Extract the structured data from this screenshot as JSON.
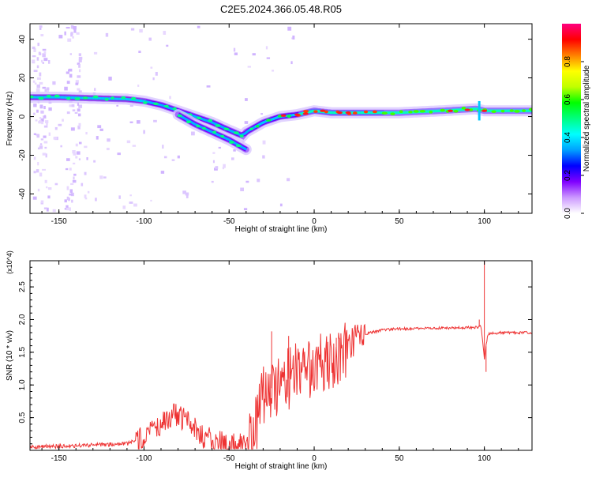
{
  "figure": {
    "title": "C2E5.2024.366.05.48.R05"
  },
  "chart_data": [
    {
      "type": "heatmap",
      "title": "C2E5.2024.366.05.48.R05",
      "xlabel": "Height of straight line (km)",
      "ylabel": "Frequency (Hz)",
      "xlim": [
        -167,
        128
      ],
      "ylim": [
        -50,
        48
      ],
      "x_ticks": [
        -150,
        -100,
        -50,
        0,
        50,
        100
      ],
      "y_ticks": [
        -40,
        -20,
        0,
        20,
        40
      ],
      "colorbar": {
        "label": "Normalized spectral amplitude",
        "range": [
          0,
          1
        ],
        "ticks": [
          0.0,
          0.2,
          0.4,
          0.6,
          0.8
        ],
        "colors": [
          "#ffffff",
          "#cc99ff",
          "#8000ff",
          "#0000ff",
          "#00a0ff",
          "#00ffff",
          "#00ff80",
          "#00ff00",
          "#c0ff00",
          "#ffff00",
          "#ff8000",
          "#ff0000",
          "#ff0080"
        ]
      },
      "ridges": [
        {
          "name": "",
          "points": [
            [
              -167,
              10
            ],
            [
              -150,
              10
            ],
            [
              -130,
              9.5
            ],
            [
              -110,
              9
            ],
            [
              -100,
              8
            ],
            [
              -90,
              6
            ],
            [
              -80,
              3
            ],
            [
              -70,
              0
            ],
            [
              -60,
              -3
            ],
            [
              -50,
              -7
            ],
            [
              -42,
              -10
            ],
            [
              -40,
              -8
            ],
            [
              -30,
              -3
            ],
            [
              -20,
              0
            ],
            [
              -10,
              1
            ],
            [
              0,
              3
            ],
            [
              10,
              2
            ],
            [
              25,
              2
            ],
            [
              50,
              2
            ],
            [
              75,
              3
            ],
            [
              95,
              4
            ],
            [
              100,
              3
            ],
            [
              128,
              3
            ]
          ]
        },
        {
          "name": "",
          "points": [
            [
              -80,
              1
            ],
            [
              -70,
              -4
            ],
            [
              -60,
              -8
            ],
            [
              -50,
              -12
            ],
            [
              -40,
              -17
            ]
          ]
        }
      ]
    },
    {
      "type": "line",
      "xlabel": "Height of straight line (km)",
      "ylabel": "SNR (10 * v/v)",
      "y_multiplier": "(x10^4)",
      "xlim": [
        -167,
        128
      ],
      "ylim": [
        0,
        2.9
      ],
      "x_ticks": [
        -150,
        -100,
        -50,
        0,
        50,
        100
      ],
      "y_ticks": [
        0.5,
        1.0,
        1.5,
        2.0,
        2.5
      ],
      "series_color": "#ee3333",
      "envelope": [
        [
          -167,
          0.05
        ],
        [
          -140,
          0.07
        ],
        [
          -110,
          0.1
        ],
        [
          -100,
          0.2
        ],
        [
          -90,
          0.4
        ],
        [
          -82,
          0.55
        ],
        [
          -75,
          0.45
        ],
        [
          -65,
          0.2
        ],
        [
          -50,
          0.1
        ],
        [
          -38,
          0.1
        ],
        [
          -33,
          0.55
        ],
        [
          -30,
          0.85
        ],
        [
          -20,
          1.05
        ],
        [
          -10,
          1.15
        ],
        [
          0,
          1.25
        ],
        [
          10,
          1.35
        ],
        [
          20,
          1.6
        ],
        [
          30,
          1.78
        ],
        [
          40,
          1.84
        ],
        [
          50,
          1.86
        ],
        [
          60,
          1.86
        ],
        [
          70,
          1.87
        ],
        [
          80,
          1.87
        ],
        [
          90,
          1.88
        ],
        [
          96,
          1.88
        ],
        [
          98,
          1.9
        ],
        [
          100,
          1.4
        ],
        [
          102,
          1.78
        ],
        [
          110,
          1.8
        ],
        [
          128,
          1.8
        ]
      ],
      "features": [
        {
          "x": 97,
          "y": 2.0
        },
        {
          "x": 100,
          "y": 2.9
        },
        {
          "x": 101,
          "y": 1.2
        },
        {
          "x": -25,
          "y": 1.82
        },
        {
          "x": -15,
          "y": 1.75
        },
        {
          "x": 13,
          "y": 1.72
        }
      ]
    }
  ]
}
